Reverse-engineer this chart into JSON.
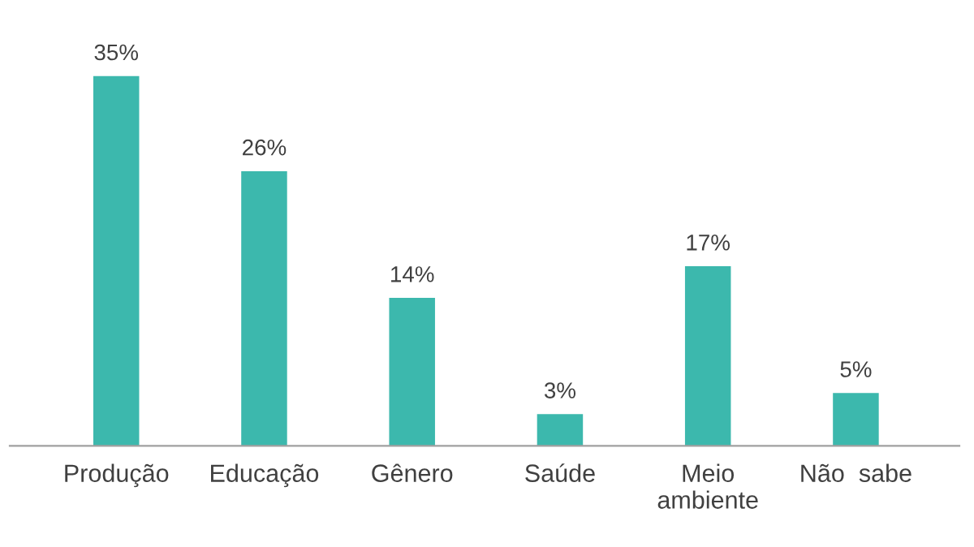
{
  "chart_data": {
    "type": "bar",
    "categories": [
      "Produção",
      "Educação",
      "Gênero",
      "Saúde",
      "Meio\nambiente",
      "Não  sabe"
    ],
    "values": [
      35,
      26,
      14,
      3,
      17,
      5
    ],
    "value_labels": [
      "35%",
      "26%",
      "14%",
      "3%",
      "17%",
      "5%"
    ],
    "color": "#3cb8ad",
    "grid": false,
    "legend": false
  }
}
